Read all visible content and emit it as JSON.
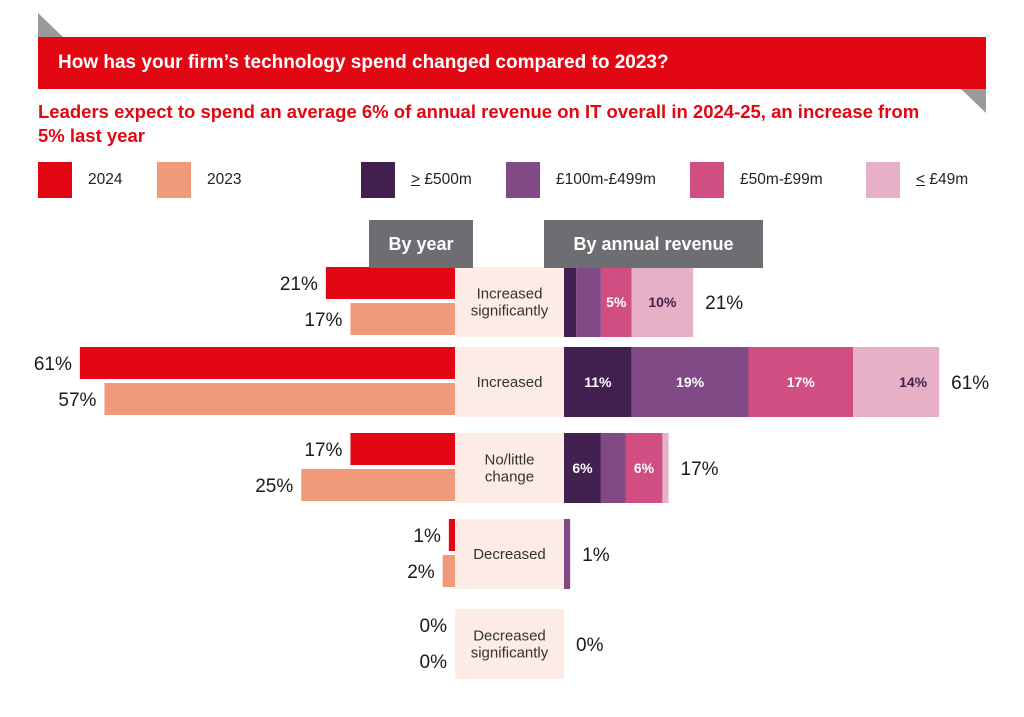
{
  "header": {
    "title": "How has your firm’s technology spend changed compared to 2023?",
    "subtitle": "Leaders expect to spend an average 6% of annual revenue on IT overall in 2024-25, an increase from 5% last year"
  },
  "legend": {
    "year_2024": {
      "label": "2024",
      "color": "#e30613"
    },
    "year_2023": {
      "label": "2023",
      "color": "#f19a7b"
    },
    "rev_500": {
      "prefix": ">",
      "label": " £500m",
      "color": "#42204f"
    },
    "rev_100": {
      "label": "£100m-£499m",
      "color": "#814a86"
    },
    "rev_50": {
      "label": "£50m-£99m",
      "color": "#d04e82"
    },
    "rev_49": {
      "prefix": "<",
      "label": " £49m",
      "color": "#e8b0c7"
    }
  },
  "tabs": {
    "by_year": "By year",
    "by_revenue": "By annual revenue"
  },
  "chart_data": {
    "type": "bar",
    "categories": [
      "Increased significantly",
      "Increased",
      "No/little change",
      "Decreased",
      "Decreased significantly"
    ],
    "category_lines": [
      [
        "Increased",
        "significantly"
      ],
      [
        "Increased"
      ],
      [
        "No/little",
        "change"
      ],
      [
        "Decreased"
      ],
      [
        "Decreased",
        "significantly"
      ]
    ],
    "by_year": {
      "series": [
        {
          "name": "2024",
          "values": [
            21,
            61,
            17,
            1,
            0
          ],
          "labels": [
            "21%",
            "61%",
            "17%",
            "1%",
            "0%"
          ],
          "color": "#e30613"
        },
        {
          "name": "2023",
          "values": [
            17,
            57,
            25,
            2,
            0
          ],
          "labels": [
            "17%",
            "57%",
            "25%",
            "2%",
            "0%"
          ],
          "color": "#f19a7b"
        }
      ]
    },
    "by_revenue": {
      "series": [
        {
          "name": "≥ £500m",
          "values": [
            2,
            11,
            6,
            0,
            0
          ],
          "labels": [
            "",
            "11%",
            "6%",
            "",
            ""
          ],
          "color": "#42204f"
        },
        {
          "name": "£100m-£499m",
          "values": [
            4,
            19,
            4,
            1,
            0
          ],
          "labels": [
            "",
            "19%",
            "",
            "",
            ""
          ],
          "color": "#814a86"
        },
        {
          "name": "£50m-£99m",
          "values": [
            5,
            17,
            6,
            0,
            0
          ],
          "labels": [
            "5%",
            "17%",
            "6%",
            "",
            ""
          ],
          "color": "#d04e82"
        },
        {
          "name": "≤ £49m",
          "values": [
            10,
            14,
            1,
            0,
            0
          ],
          "labels": [
            "10%",
            "14%",
            "",
            "",
            ""
          ],
          "color": "#e8b0c7"
        }
      ],
      "totals": [
        "21%",
        "61%",
        "17%",
        "1%",
        "0%"
      ]
    },
    "category_box_color": "#fdebe5"
  }
}
